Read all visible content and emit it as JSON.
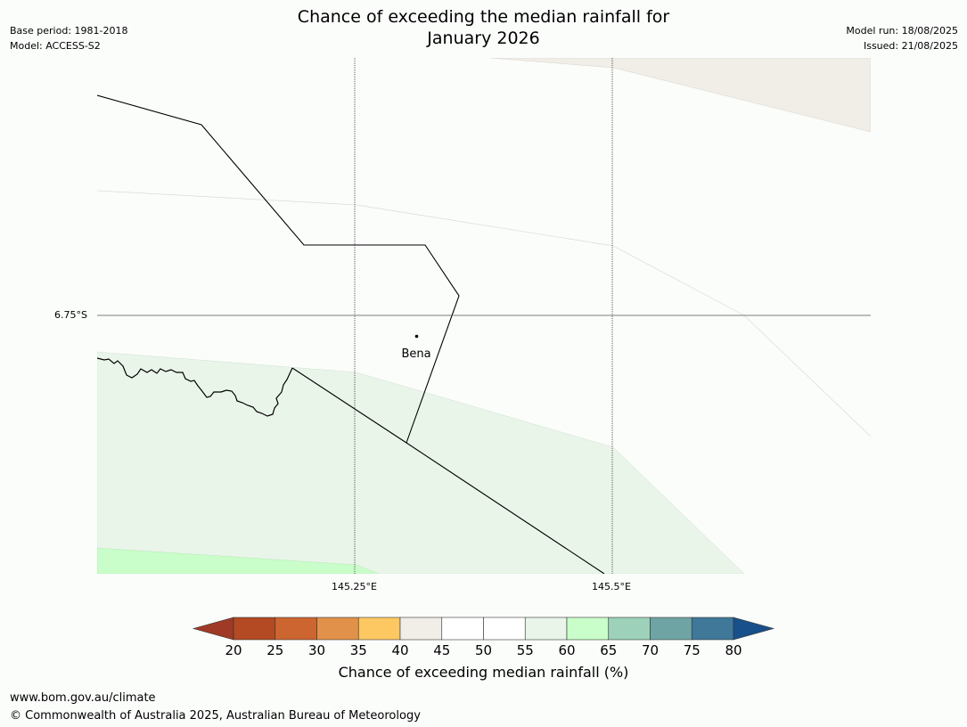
{
  "title": {
    "line1": "Chance of exceeding the median rainfall for",
    "line2": "January 2026"
  },
  "meta_left": {
    "base_period": "Base period: 1981-2018",
    "model": "Model: ACCESS-S2"
  },
  "meta_right": {
    "model_run": "Model run: 18/08/2025",
    "issued": "Issued: 21/08/2025"
  },
  "map": {
    "lat_label": "6.75°S",
    "lon_labels": [
      "145.25°E",
      "145.5°E"
    ],
    "place_name": "Bena"
  },
  "colorbar": {
    "ticks": [
      "20",
      "25",
      "30",
      "35",
      "40",
      "45",
      "50",
      "55",
      "60",
      "65",
      "70",
      "75",
      "80"
    ],
    "colors": [
      "#9e3a26",
      "#b34a24",
      "#cc6530",
      "#e2914a",
      "#fdc862",
      "#f1ede7",
      "#ffffff",
      "#ffffff",
      "#eaf5ea",
      "#c9fdc9",
      "#9dd1b9",
      "#6ea4a4",
      "#3f7899",
      "#17508a"
    ],
    "label": "Chance of exceeding median rainfall (%)"
  },
  "footer": {
    "url": "www.bom.gov.au/climate",
    "copyright": "© Commonwealth of Australia 2025, Australian Bureau of Meteorology"
  }
}
